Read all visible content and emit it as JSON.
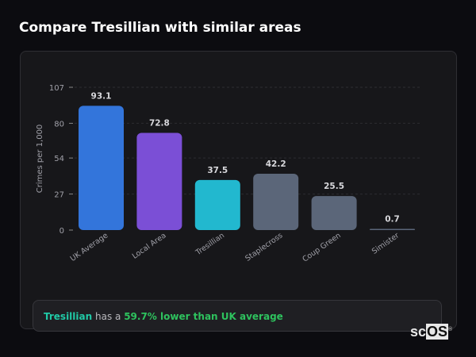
{
  "header": {
    "title": "Compare Tresillian with similar areas"
  },
  "chart_data": {
    "type": "bar",
    "categories": [
      "UK Average",
      "Local Area",
      "Tresillian",
      "Staplecross",
      "Coup Green",
      "Simister"
    ],
    "values": [
      93.1,
      72.8,
      37.5,
      42.2,
      25.5,
      0.7
    ],
    "value_labels": [
      "93.1",
      "72.8",
      "37.5",
      "42.2",
      "25.5",
      "0.7"
    ],
    "colors": [
      "#3375db",
      "#7b4fd6",
      "#22b8cf",
      "#5b6679",
      "#5b6679",
      "#5b6679"
    ],
    "ylabel": "Crimes per 1,000",
    "ylim": [
      0,
      107
    ],
    "yticks": [
      0,
      27,
      54,
      80,
      107
    ],
    "grid": true
  },
  "summary": {
    "area": "Tresillian",
    "middle": " has a ",
    "highlight": "59.7% lower than UK average",
    "area_color": "#20c9a6",
    "highlight_color": "#2ec25e"
  },
  "logo": {
    "text_a": "sc",
    "text_b": "OS",
    "mark": "®"
  }
}
